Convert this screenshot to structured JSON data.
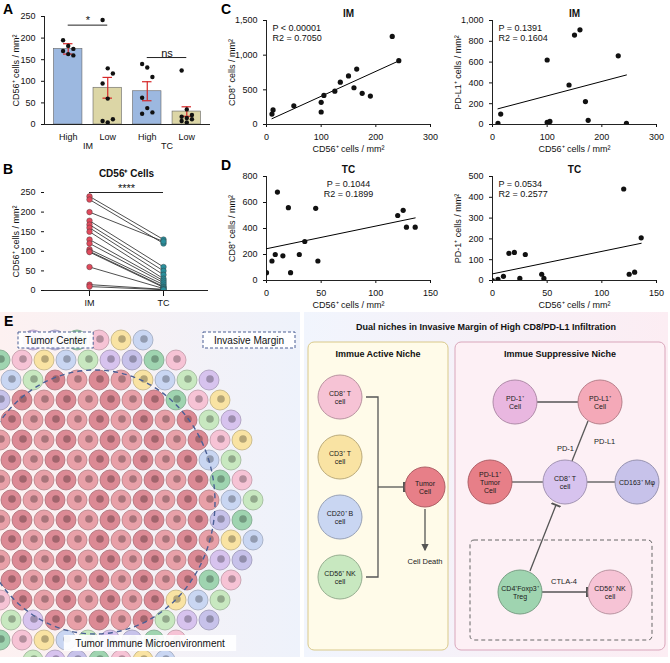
{
  "chart_data": [
    {
      "panel": "A",
      "type": "bar",
      "categories": [
        "High",
        "Low",
        "High",
        "Low"
      ],
      "groups": [
        {
          "label": "IM",
          "categories": [
            0,
            1
          ]
        },
        {
          "label": "TC",
          "categories": [
            2,
            3
          ]
        }
      ],
      "values": [
        175,
        85,
        77,
        30
      ],
      "errors": [
        12,
        24,
        22,
        11
      ],
      "points": [
        [
          195,
          182,
          175,
          170,
          163,
          160
        ],
        [
          242,
          130,
          118,
          95,
          60,
          12,
          8,
          5
        ],
        [
          140,
          132,
          110,
          62,
          38,
          28,
          25
        ],
        [
          125,
          35,
          22,
          18,
          15,
          12,
          8,
          5
        ]
      ],
      "colors": [
        "#9cb8e0",
        "#dcd6a6",
        "#9cb8e0",
        "#dcd6a6"
      ],
      "ylabel": "CD56⁺ cells / mm²",
      "ylim": [
        0,
        250
      ],
      "yticks": [
        0,
        50,
        100,
        150,
        200,
        250
      ],
      "significance": [
        {
          "groups": [
            0,
            1
          ],
          "label": "*"
        },
        {
          "groups": [
            2,
            3
          ],
          "label": "ns"
        }
      ]
    },
    {
      "panel": "B",
      "type": "paired_dot",
      "title": "CD56⁺ Cells",
      "categories": [
        "IM",
        "TC"
      ],
      "colors": [
        "#e04a5c",
        "#2a8f9c"
      ],
      "pairs": [
        [
          240,
          130
        ],
        [
          232,
          120
        ],
        [
          200,
          125
        ],
        [
          178,
          60
        ],
        [
          168,
          50
        ],
        [
          160,
          40
        ],
        [
          150,
          30
        ],
        [
          130,
          25
        ],
        [
          120,
          20
        ],
        [
          105,
          15
        ],
        [
          100,
          10
        ],
        [
          98,
          8
        ],
        [
          60,
          5
        ],
        [
          15,
          3
        ],
        [
          10,
          2
        ]
      ],
      "significance": "****",
      "ylabel": "CD56⁺ cells / mm²",
      "ylim": [
        0,
        250
      ],
      "yticks": [
        0,
        50,
        100,
        150,
        200,
        250
      ]
    },
    {
      "panel": "C",
      "type": "scatter",
      "title": "IM",
      "color": "#111111",
      "x": [
        10,
        12,
        50,
        100,
        100,
        105,
        125,
        135,
        150,
        160,
        165,
        175,
        190,
        230,
        242
      ],
      "y": [
        150,
        210,
        270,
        180,
        320,
        420,
        480,
        610,
        700,
        530,
        800,
        450,
        410,
        1270,
        920
      ],
      "xlabel": "CD56⁺ cells / mm²",
      "ylabel": "CD8⁺ cells / mm²",
      "xlim": [
        0,
        300
      ],
      "xticks": [
        0,
        100,
        200,
        300
      ],
      "ylim": [
        0,
        1500
      ],
      "yticks": [
        0,
        500,
        1000,
        1500
      ],
      "annotations": [
        "P < 0.00001",
        "R2 = 0.7050"
      ]
    },
    {
      "type": "scatter",
      "title": "IM",
      "color": "#111111",
      "x": [
        10,
        15,
        100,
        100,
        105,
        140,
        150,
        160,
        170,
        175,
        230,
        245
      ],
      "y": [
        10,
        100,
        20,
        620,
        30,
        380,
        860,
        910,
        220,
        40,
        660,
        10
      ],
      "xlabel": "CD56⁺ cells / mm²",
      "ylabel": "PD-L1⁺ cells / mm²",
      "xlim": [
        0,
        300
      ],
      "xticks": [
        0,
        100,
        200,
        300
      ],
      "ylim": [
        0,
        1000
      ],
      "yticks": [
        0,
        200,
        400,
        600,
        800,
        1000
      ],
      "annotations": [
        "P = 0.1391",
        "R2 = 0.1604"
      ]
    },
    {
      "panel": "D",
      "type": "scatter",
      "title": "TC",
      "color": "#111111",
      "x": [
        0,
        5,
        8,
        10,
        15,
        20,
        22,
        30,
        35,
        45,
        47,
        120,
        125,
        128,
        136
      ],
      "y": [
        60,
        150,
        200,
        680,
        190,
        560,
        60,
        200,
        300,
        555,
        150,
        500,
        540,
        410,
        410
      ],
      "xlabel": "CD56⁺ cells / mm²",
      "ylabel": "CD8⁺ cells / mm²",
      "xlim": [
        0,
        150
      ],
      "xticks": [
        0,
        50,
        100,
        150
      ],
      "ylim": [
        0,
        800
      ],
      "yticks": [
        0,
        200,
        400,
        600,
        800
      ],
      "annotations": [
        "P = 0.1044",
        "R2 = 0.1899"
      ]
    },
    {
      "type": "scatter",
      "title": "TC",
      "color": "#111111",
      "x": [
        0,
        5,
        10,
        15,
        20,
        25,
        30,
        45,
        47,
        120,
        125,
        130,
        136
      ],
      "y": [
        0,
        5,
        20,
        130,
        135,
        10,
        125,
        30,
        10,
        440,
        30,
        40,
        205
      ],
      "xlabel": "CD56⁺ cells / mm²",
      "ylabel": "PD-1⁺ cells / mm²",
      "xlim": [
        0,
        150
      ],
      "xticks": [
        0,
        50,
        100,
        150
      ],
      "ylim": [
        0,
        500
      ],
      "yticks": [
        0,
        100,
        200,
        300,
        400,
        500
      ],
      "annotations": [
        "P = 0.0534",
        "R2 = 0.2577"
      ]
    }
  ],
  "diagram": {
    "panel": "E",
    "illustration": {
      "center": "Tumor Center",
      "margin": "Invasive Margin",
      "caption": "Tumor Immune Microenvironment"
    },
    "title": "Dual niches in Invasive Margin of High CD8/PD-L1 Infiltration",
    "active_niche": {
      "title": "Immue Active Niche",
      "cells": [
        {
          "label": "CD8⁺ T cell",
          "color": "#f6c3d5"
        },
        {
          "label": "CD3⁺ T cell",
          "color": "#f9e3a3"
        },
        {
          "label": "CD20⁺ B cell",
          "color": "#c9d6f2"
        },
        {
          "label": "CD56⁺ NK cell",
          "color": "#c8e8c0"
        }
      ],
      "target": {
        "label": "Tumor Cell",
        "color": "#e77f88"
      },
      "outcome": "Cell Death"
    },
    "suppressive_niche": {
      "title": "Immue Suppressive Niche",
      "cells": [
        {
          "label": "PD-1⁺ Cell",
          "color": "#e9b7e0"
        },
        {
          "label": "PD-L1⁺ Cell",
          "color": "#f4a9b8"
        },
        {
          "label": "PD-L1⁺ Tumor Cell",
          "color": "#e77f88"
        },
        {
          "label": "CD8⁺ T cell",
          "color": "#d7c3ee"
        },
        {
          "label": "CD163⁺ Mφ",
          "color": "#c7c2ea"
        },
        {
          "label": "CD4⁺Foxp3⁺ Treg",
          "color": "#9fd4b0"
        },
        {
          "label": "CD56⁺ NK cell",
          "color": "#f6c3d5"
        }
      ],
      "molecules": [
        "PD-L1",
        "PD-1",
        "CTLA-4"
      ]
    }
  }
}
